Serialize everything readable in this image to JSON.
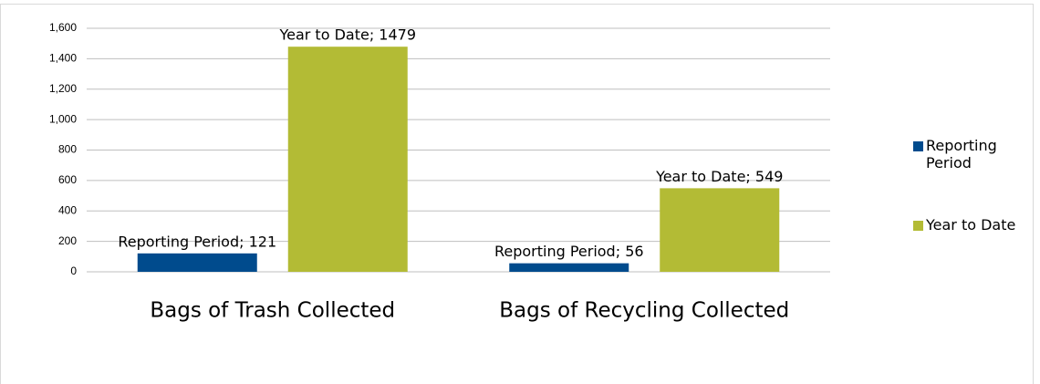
{
  "chart_data": {
    "type": "bar",
    "categories": [
      "Bags of Trash Collected",
      "Bags of Recycling Collected"
    ],
    "series": [
      {
        "name": "Reporting Period",
        "color": "#004b8d",
        "values": [
          121,
          56
        ],
        "value_labels": [
          "Reporting Period; 121",
          "Reporting Period; 56"
        ]
      },
      {
        "name": "Year to Date",
        "color": "#b3bb35",
        "values": [
          1479,
          549
        ],
        "value_labels": [
          "Year to Date; 1479",
          "Year to Date; 549"
        ]
      }
    ],
    "ylim": [
      0,
      1600
    ],
    "yticks": [
      0,
      200,
      400,
      600,
      800,
      {
        "value": 1000,
        "label": "1,000"
      },
      {
        "value": 1200,
        "label": "1,200"
      },
      {
        "value": 1400,
        "label": "1,400"
      },
      {
        "value": 1600,
        "label": "1,600"
      }
    ],
    "grid": true,
    "legend": "right"
  }
}
